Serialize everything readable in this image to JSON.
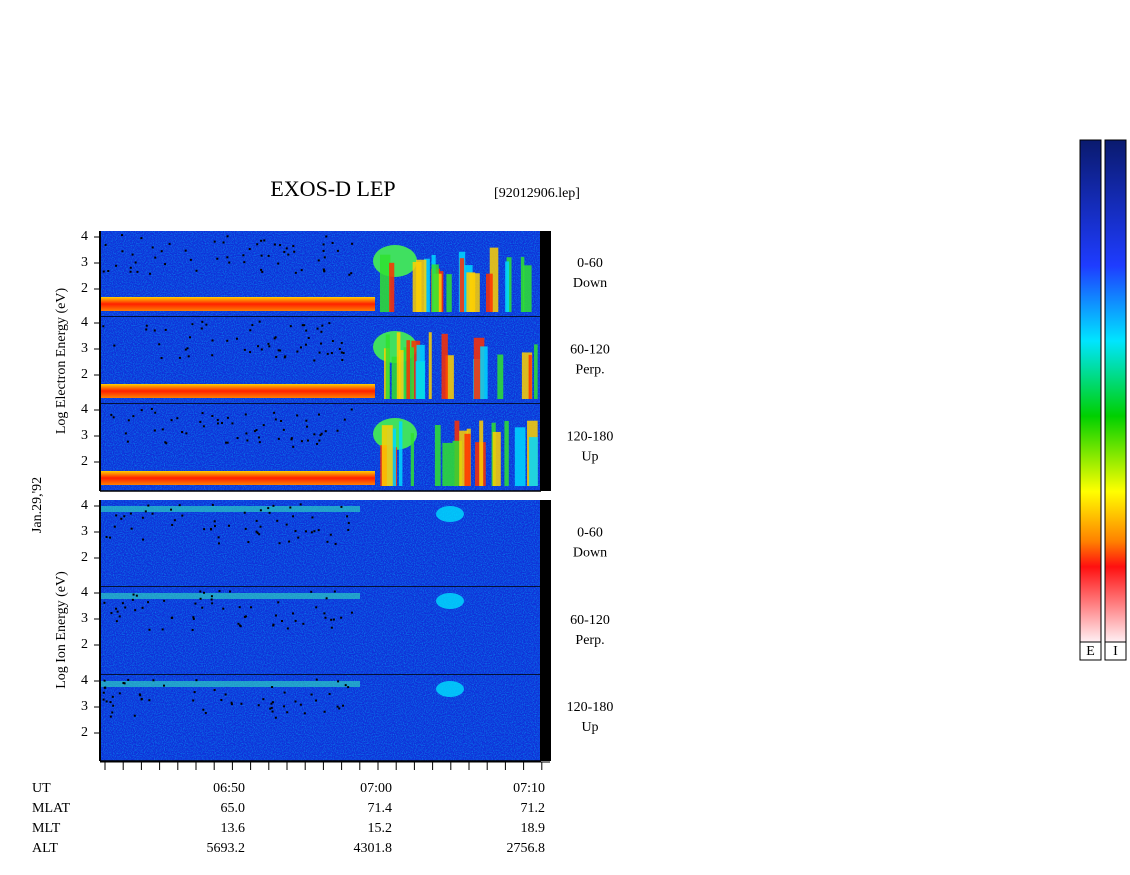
{
  "header": {
    "title": "EXOS-D LEP",
    "file": "[92012906.lep]"
  },
  "date": "Jan.29,'92",
  "electron_label": "Log  Electron  Energy (eV)",
  "ion_label": "Log  Ion  Energy (eV)",
  "electron_panels": [
    {
      "ticks": [
        "4",
        "3",
        "2"
      ],
      "angle": "0-60",
      "direction": "Down"
    },
    {
      "ticks": [
        "4",
        "3",
        "2"
      ],
      "angle": "60-120",
      "direction": "Perp."
    },
    {
      "ticks": [
        "4",
        "3",
        "2"
      ],
      "angle": "120-180",
      "direction": "Up"
    }
  ],
  "ion_panels": [
    {
      "ticks": [
        "4",
        "3",
        "2"
      ],
      "angle": "0-60",
      "direction": "Down"
    },
    {
      "ticks": [
        "4",
        "3",
        "2"
      ],
      "angle": "60-120",
      "direction": "Perp."
    },
    {
      "ticks": [
        "4",
        "3",
        "2"
      ],
      "angle": "120-180",
      "direction": "Up"
    }
  ],
  "time_axis": {
    "row_labels": [
      "UT",
      "MLAT",
      "MLT",
      "ALT"
    ],
    "columns": [
      [
        "06:50",
        "65.0",
        "13.6",
        "5693.2"
      ],
      [
        "07:00",
        "71.4",
        "15.2",
        "4301.8"
      ],
      [
        "07:10",
        "71.2",
        "18.9",
        "2756.8"
      ]
    ]
  },
  "colorbars": [
    "E",
    "I"
  ]
}
